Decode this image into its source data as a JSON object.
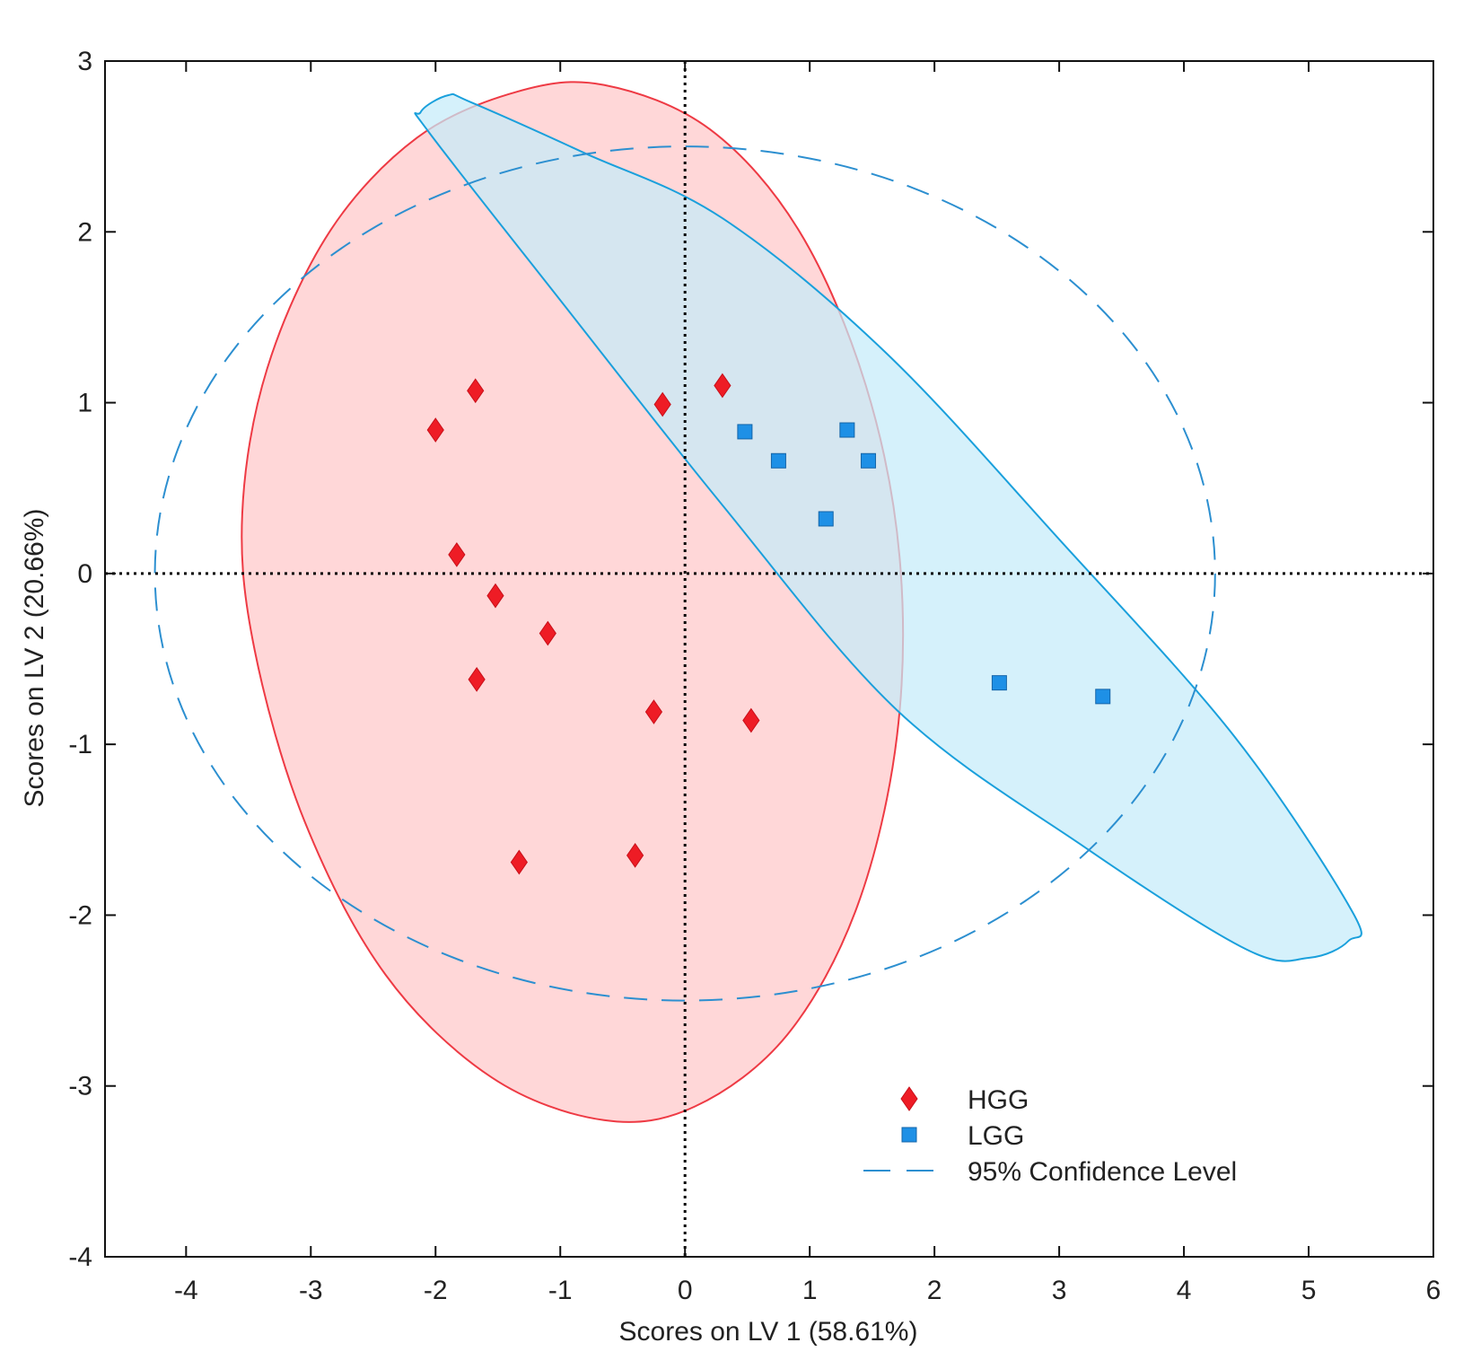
{
  "chart_data": {
    "type": "scatter",
    "title": "",
    "xlabel": "Scores on LV 1 (58.61%)",
    "ylabel": "Scores on LV 2 (20.66%)",
    "xlim": [
      -4.65,
      6
    ],
    "ylim": [
      -4,
      3
    ],
    "xticks": [
      -4,
      -3,
      -2,
      -1,
      0,
      1,
      2,
      3,
      4,
      5,
      6
    ],
    "yticks": [
      -4,
      -3,
      -2,
      -1,
      0,
      1,
      2,
      3
    ],
    "series": [
      {
        "name": "HGG",
        "marker": "diamond",
        "color": "#ee1c25",
        "points": [
          [
            -1.68,
            1.07
          ],
          [
            -2.0,
            0.84
          ],
          [
            -0.18,
            0.99
          ],
          [
            0.3,
            1.1
          ],
          [
            -1.83,
            0.11
          ],
          [
            -1.52,
            -0.13
          ],
          [
            -1.1,
            -0.35
          ],
          [
            -1.67,
            -0.62
          ],
          [
            -0.25,
            -0.81
          ],
          [
            0.53,
            -0.86
          ],
          [
            -1.33,
            -1.69
          ],
          [
            -0.4,
            -1.65
          ]
        ]
      },
      {
        "name": "LGG",
        "marker": "square",
        "color": "#1e90e6",
        "points": [
          [
            0.48,
            0.83
          ],
          [
            0.75,
            0.66
          ],
          [
            1.3,
            0.84
          ],
          [
            1.47,
            0.66
          ],
          [
            1.13,
            0.32
          ],
          [
            2.52,
            -0.64
          ],
          [
            3.35,
            -0.72
          ]
        ]
      }
    ],
    "ellipses": [
      {
        "group": "HGG",
        "fill": "#ffc7c9",
        "stroke": "#ee3a44",
        "path": [
          [
            -0.65,
            2.86
          ],
          [
            0.2,
            2.6
          ],
          [
            0.92,
            2.0
          ],
          [
            1.45,
            1.1
          ],
          [
            1.72,
            0.1
          ],
          [
            1.7,
            -0.95
          ],
          [
            1.38,
            -1.95
          ],
          [
            0.82,
            -2.7
          ],
          [
            0.08,
            -3.12
          ],
          [
            -0.65,
            -3.2
          ],
          [
            -1.55,
            -2.95
          ],
          [
            -2.4,
            -2.35
          ],
          [
            -3.05,
            -1.45
          ],
          [
            -3.45,
            -0.45
          ],
          [
            -3.55,
            0.35
          ],
          [
            -3.35,
            1.2
          ],
          [
            -2.85,
            2.0
          ],
          [
            -2.15,
            2.55
          ],
          [
            -1.35,
            2.82
          ]
        ]
      },
      {
        "group": "LGG",
        "fill": "#c5ecf9",
        "stroke": "#1aa0dc",
        "path": [
          [
            -1.9,
            2.8
          ],
          [
            -1.72,
            2.76
          ],
          [
            -0.8,
            2.46
          ],
          [
            0.3,
            2.08
          ],
          [
            1.6,
            1.3
          ],
          [
            3.0,
            0.2
          ],
          [
            4.4,
            -0.95
          ],
          [
            5.35,
            -1.98
          ],
          [
            5.32,
            -2.15
          ],
          [
            5.0,
            -2.25
          ],
          [
            4.5,
            -2.2
          ],
          [
            3.2,
            -1.6
          ],
          [
            1.7,
            -0.8
          ],
          [
            0.3,
            0.4
          ],
          [
            -1.0,
            1.6
          ],
          [
            -2.05,
            2.58
          ],
          [
            -2.12,
            2.7
          ]
        ]
      }
    ],
    "confidence_ellipse": {
      "cx": 0.0,
      "cy": 0.0,
      "rx": 4.25,
      "ry": 2.5,
      "color": "#2c8fd0"
    },
    "reference_lines": {
      "x": 0,
      "y": 0,
      "style": "dotted",
      "color": "#000000"
    },
    "legend": {
      "position": "bottom-right",
      "items": [
        {
          "label": "HGG",
          "marker": "diamond",
          "color": "#ee1c25"
        },
        {
          "label": "LGG",
          "marker": "square",
          "color": "#1e90e6"
        },
        {
          "label": "95% Confidence Level",
          "marker": "dashed-line",
          "color": "#2c8fd0"
        }
      ]
    }
  }
}
